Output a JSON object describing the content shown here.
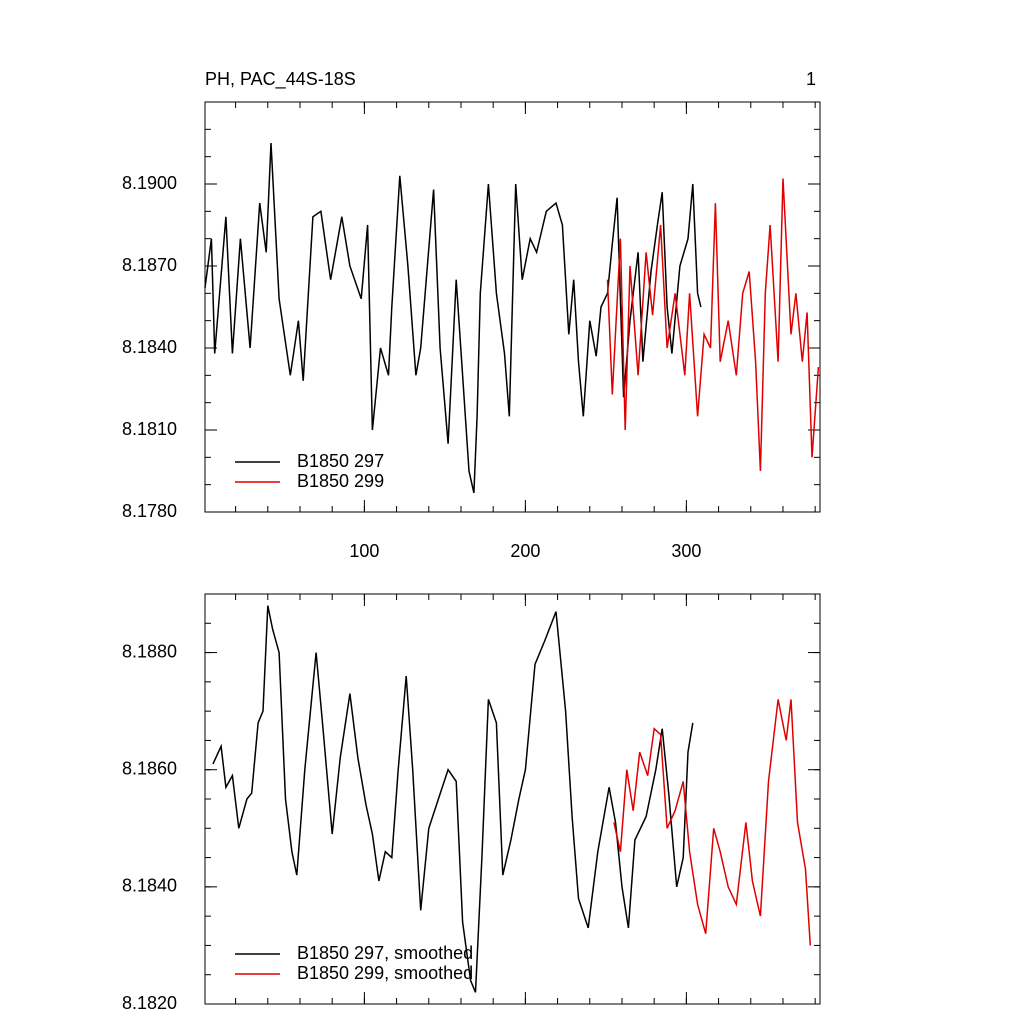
{
  "chart_data": [
    {
      "type": "line",
      "title": "PH, PAC_44S-18S",
      "corner_label": "1",
      "xlim": [
        1,
        383
      ],
      "xticks": [
        100,
        200,
        300
      ],
      "ylim": [
        8.178,
        8.193
      ],
      "yticks": [
        {
          "value": 8.178,
          "label": "8.1780"
        },
        {
          "value": 8.181,
          "label": "8.1810"
        },
        {
          "value": 8.184,
          "label": "8.1840"
        },
        {
          "value": 8.187,
          "label": "8.1870"
        },
        {
          "value": 8.19,
          "label": "8.1900"
        }
      ],
      "legend": "lower left",
      "series": [
        {
          "name": "B1850 297",
          "color": "#000000",
          "x": [
            1,
            5,
            7,
            14,
            18,
            23,
            29,
            35,
            39,
            42,
            47,
            54,
            59,
            62,
            68,
            73,
            79,
            86,
            91,
            98,
            102,
            105,
            110,
            115,
            117,
            122,
            127,
            132,
            135,
            143,
            147,
            152,
            157,
            161,
            165,
            168,
            170,
            172,
            177,
            182,
            187,
            190,
            194,
            198,
            203,
            207,
            213,
            219,
            223,
            227,
            230,
            233,
            236,
            240,
            244,
            247,
            251,
            254,
            257,
            261,
            265,
            270,
            273,
            278,
            282,
            285,
            288,
            291,
            296,
            301,
            304,
            307,
            309
          ],
          "values": [
            8.1862,
            8.188,
            8.1838,
            8.1888,
            8.1838,
            8.188,
            8.184,
            8.1893,
            8.1875,
            8.1915,
            8.1858,
            8.183,
            8.185,
            8.1828,
            8.1888,
            8.189,
            8.1865,
            8.1888,
            8.187,
            8.1858,
            8.1885,
            8.181,
            8.184,
            8.183,
            8.1855,
            8.1903,
            8.187,
            8.183,
            8.184,
            8.1898,
            8.184,
            8.1805,
            8.1865,
            8.183,
            8.1795,
            8.1787,
            8.1815,
            8.186,
            8.19,
            8.186,
            8.1838,
            8.1815,
            8.19,
            8.1865,
            8.188,
            8.1875,
            8.189,
            8.1893,
            8.1885,
            8.1845,
            8.1865,
            8.1835,
            8.1815,
            8.185,
            8.1837,
            8.1855,
            8.186,
            8.1878,
            8.1895,
            8.1822,
            8.185,
            8.1875,
            8.1835,
            8.1868,
            8.1885,
            8.1897,
            8.1855,
            8.1838,
            8.187,
            8.188,
            8.19,
            8.186,
            8.1855
          ]
        },
        {
          "name": "B1850 299",
          "color": "#e00000",
          "x": [
            251,
            254,
            259,
            262,
            265,
            270,
            275,
            279,
            284,
            288,
            293,
            299,
            302,
            307,
            311,
            315,
            318,
            321,
            326,
            331,
            335,
            339,
            343,
            346,
            349,
            352,
            357,
            360,
            365,
            368,
            372,
            375,
            378,
            382
          ],
          "values": [
            8.1865,
            8.1823,
            8.188,
            8.181,
            8.187,
            8.183,
            8.1875,
            8.1852,
            8.1885,
            8.184,
            8.186,
            8.183,
            8.186,
            8.1815,
            8.1845,
            8.184,
            8.1893,
            8.1835,
            8.185,
            8.183,
            8.186,
            8.1868,
            8.1835,
            8.1795,
            8.186,
            8.1885,
            8.1835,
            8.1902,
            8.1845,
            8.186,
            8.1835,
            8.1853,
            8.18,
            8.1833
          ]
        }
      ]
    },
    {
      "type": "line",
      "xlim": [
        1,
        383
      ],
      "xticks": [
        100,
        200,
        300
      ],
      "ylim": [
        8.182,
        8.189
      ],
      "yticks": [
        {
          "value": 8.182,
          "label": "8.1820"
        },
        {
          "value": 8.184,
          "label": "8.1840"
        },
        {
          "value": 8.186,
          "label": "8.1860"
        },
        {
          "value": 8.188,
          "label": "8.1880"
        }
      ],
      "legend": "lower left",
      "series": [
        {
          "name": "B1850 297, smoothed",
          "color": "#000000",
          "x": [
            6,
            11,
            14,
            18,
            22,
            27,
            30,
            34,
            37,
            40,
            43,
            47,
            51,
            55,
            58,
            63,
            70,
            74,
            80,
            85,
            91,
            96,
            101,
            105,
            109,
            113,
            117,
            121,
            126,
            130,
            135,
            140,
            146,
            152,
            157,
            161,
            166,
            169,
            173,
            177,
            182,
            186,
            191,
            196,
            200,
            206,
            212,
            219,
            225,
            229,
            233,
            239,
            245,
            252,
            256,
            260,
            264,
            268,
            275,
            281,
            285,
            289,
            294,
            298,
            301,
            304
          ],
          "values": [
            8.1861,
            8.1864,
            8.1857,
            8.1859,
            8.185,
            8.1855,
            8.1856,
            8.1868,
            8.187,
            8.1888,
            8.1884,
            8.188,
            8.1855,
            8.1846,
            8.1842,
            8.186,
            8.188,
            8.1868,
            8.1849,
            8.1862,
            8.1873,
            8.1862,
            8.1854,
            8.1849,
            8.1841,
            8.1846,
            8.1845,
            8.186,
            8.1876,
            8.186,
            8.1836,
            8.185,
            8.1855,
            8.186,
            8.1858,
            8.1834,
            8.1824,
            8.1822,
            8.1845,
            8.1872,
            8.1868,
            8.1842,
            8.1848,
            8.1855,
            8.186,
            8.1878,
            8.1882,
            8.1887,
            8.187,
            8.1852,
            8.1838,
            8.1833,
            8.1846,
            8.1857,
            8.1851,
            8.184,
            8.1833,
            8.1848,
            8.1852,
            8.186,
            8.1867,
            8.1856,
            8.184,
            8.1845,
            8.1863,
            8.1868
          ]
        },
        {
          "name": "B1850 299, smoothed",
          "color": "#e00000",
          "x": [
            255,
            259,
            263,
            267,
            271,
            276,
            280,
            284,
            288,
            293,
            298,
            302,
            307,
            312,
            317,
            321,
            326,
            331,
            337,
            341,
            346,
            351,
            357,
            362,
            365,
            369,
            374,
            377
          ],
          "values": [
            8.1851,
            8.1846,
            8.186,
            8.1853,
            8.1863,
            8.1859,
            8.1867,
            8.1866,
            8.185,
            8.1853,
            8.1858,
            8.1846,
            8.1837,
            8.1832,
            8.185,
            8.1846,
            8.184,
            8.1837,
            8.1851,
            8.1841,
            8.1835,
            8.1858,
            8.1872,
            8.1865,
            8.1872,
            8.1851,
            8.1843,
            8.183
          ]
        }
      ]
    }
  ]
}
